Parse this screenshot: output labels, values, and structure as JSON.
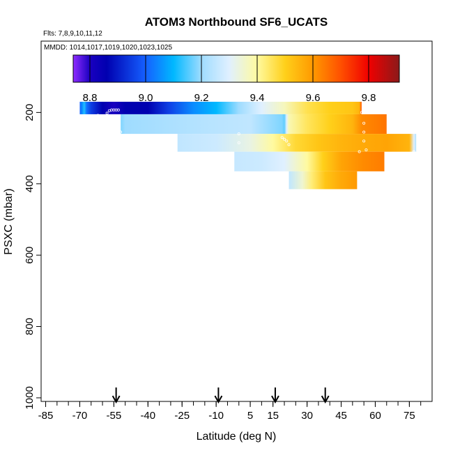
{
  "chart_data": {
    "type": "heatmap",
    "title": "ATOM3 Northbound SF6_UCATS",
    "flights_text": "Flts: 7,8,9,10,11,12",
    "dates_text": "MMDD: 1014,1017,1019,1020,1023,1025",
    "xlabel": "Latitude (deg N)",
    "ylabel": "PSXC (mbar)",
    "xlim": [
      -87,
      85
    ],
    "ylim": [
      1010,
      0
    ],
    "x_ticks": [
      -85,
      -70,
      -55,
      -40,
      -25,
      -10,
      5,
      15,
      30,
      45,
      60,
      75
    ],
    "x_tick_labels": [
      "-85",
      "-70",
      "-55",
      "-40",
      "-25",
      "-10",
      "5",
      "15",
      "30",
      "45",
      "60",
      "75"
    ],
    "y_ticks": [
      200,
      400,
      600,
      800,
      1000
    ],
    "y_tick_labels": [
      "200",
      "400",
      "600",
      "800",
      "1000"
    ],
    "colorbar": {
      "vmin": 8.74,
      "vmax": 9.91,
      "ticks": [
        8.8,
        9.0,
        9.2,
        9.4,
        9.6,
        9.8
      ],
      "tick_labels": [
        "8.8",
        "9.0",
        "9.2",
        "9.4",
        "9.6",
        "9.8"
      ],
      "stops": [
        {
          "v": 8.74,
          "c": "#8f2cff"
        },
        {
          "v": 8.8,
          "c": "#1a00c0"
        },
        {
          "v": 8.86,
          "c": "#0000b0"
        },
        {
          "v": 9.0,
          "c": "#1560ff"
        },
        {
          "v": 9.1,
          "c": "#00b8ff"
        },
        {
          "v": 9.2,
          "c": "#9fdcff"
        },
        {
          "v": 9.3,
          "c": "#e0f0ff"
        },
        {
          "v": 9.4,
          "c": "#fffaa0"
        },
        {
          "v": 9.5,
          "c": "#ffd01a"
        },
        {
          "v": 9.6,
          "c": "#ff9900"
        },
        {
          "v": 9.7,
          "c": "#ff5000"
        },
        {
          "v": 9.8,
          "c": "#f00000"
        },
        {
          "v": 9.91,
          "c": "#8b1a1a"
        }
      ]
    },
    "arrow_latitudes": [
      -54,
      -9,
      16,
      38
    ],
    "profiles": [
      {
        "p_top": 170,
        "p_bot": 205,
        "points": [
          [
            -70,
            9.0
          ],
          [
            -69,
            9.05
          ],
          [
            -68,
            9.12
          ],
          [
            -67,
            9.02
          ],
          [
            -65,
            8.95
          ],
          [
            -60,
            8.86
          ],
          [
            -55,
            8.8
          ],
          [
            -50,
            8.86
          ],
          [
            -40,
            8.86
          ],
          [
            -30,
            8.96
          ],
          [
            -20,
            9.05
          ],
          [
            -10,
            9.1
          ],
          [
            0,
            9.2
          ],
          [
            10,
            9.3
          ],
          [
            20,
            9.37
          ],
          [
            30,
            9.46
          ],
          [
            40,
            9.5
          ],
          [
            50,
            9.52
          ],
          [
            53,
            9.55
          ],
          [
            54,
            9.7
          ]
        ]
      },
      {
        "p_top": 205,
        "p_bot": 260,
        "points": [
          [
            -52,
            9.18
          ],
          [
            -50,
            9.2
          ],
          [
            -30,
            9.22
          ],
          [
            -10,
            9.24
          ],
          [
            5,
            9.25
          ],
          [
            19,
            9.18
          ],
          [
            20,
            9.16
          ],
          [
            21,
            9.3
          ],
          [
            22,
            9.38
          ],
          [
            30,
            9.45
          ],
          [
            40,
            9.5
          ],
          [
            50,
            9.55
          ],
          [
            54,
            9.62
          ],
          [
            65,
            9.65
          ]
        ]
      },
      {
        "p_top": 260,
        "p_bot": 310,
        "points": [
          [
            -27,
            9.25
          ],
          [
            -10,
            9.27
          ],
          [
            5,
            9.33
          ],
          [
            15,
            9.4
          ],
          [
            25,
            9.48
          ],
          [
            35,
            9.52
          ],
          [
            45,
            9.55
          ],
          [
            55,
            9.57
          ],
          [
            65,
            9.58
          ],
          [
            75,
            9.55
          ],
          [
            77,
            9.3
          ],
          [
            78,
            9.22
          ]
        ]
      },
      {
        "p_top": 310,
        "p_bot": 365,
        "points": [
          [
            -2,
            9.26
          ],
          [
            10,
            9.27
          ],
          [
            20,
            9.3
          ],
          [
            30,
            9.4
          ],
          [
            37,
            9.5
          ],
          [
            45,
            9.58
          ],
          [
            55,
            9.62
          ],
          [
            64,
            9.64
          ]
        ]
      },
      {
        "p_top": 365,
        "p_bot": 415,
        "points": [
          [
            22,
            9.25
          ],
          [
            28,
            9.35
          ],
          [
            32,
            9.43
          ],
          [
            38,
            9.52
          ],
          [
            45,
            9.57
          ],
          [
            52,
            9.6
          ]
        ]
      }
    ],
    "sample_markers": [
      [
        -68,
        210
      ],
      [
        -66,
        210
      ],
      [
        -64,
        210
      ],
      [
        -62,
        208
      ],
      [
        -58,
        202
      ],
      [
        -57,
        195
      ],
      [
        -56,
        193
      ],
      [
        -55,
        193
      ],
      [
        -54,
        193
      ],
      [
        -53,
        193
      ],
      [
        -59,
        212
      ],
      [
        -53,
        250
      ],
      [
        -52,
        255
      ],
      [
        0,
        260
      ],
      [
        19,
        270
      ],
      [
        20,
        275
      ],
      [
        21,
        280
      ],
      [
        22,
        290
      ],
      [
        54,
        200
      ],
      [
        55,
        230
      ],
      [
        55,
        255
      ],
      [
        55,
        280
      ],
      [
        0,
        285
      ],
      [
        53,
        310
      ],
      [
        56,
        305
      ],
      [
        53,
        370
      ],
      [
        77,
        310
      ]
    ]
  }
}
